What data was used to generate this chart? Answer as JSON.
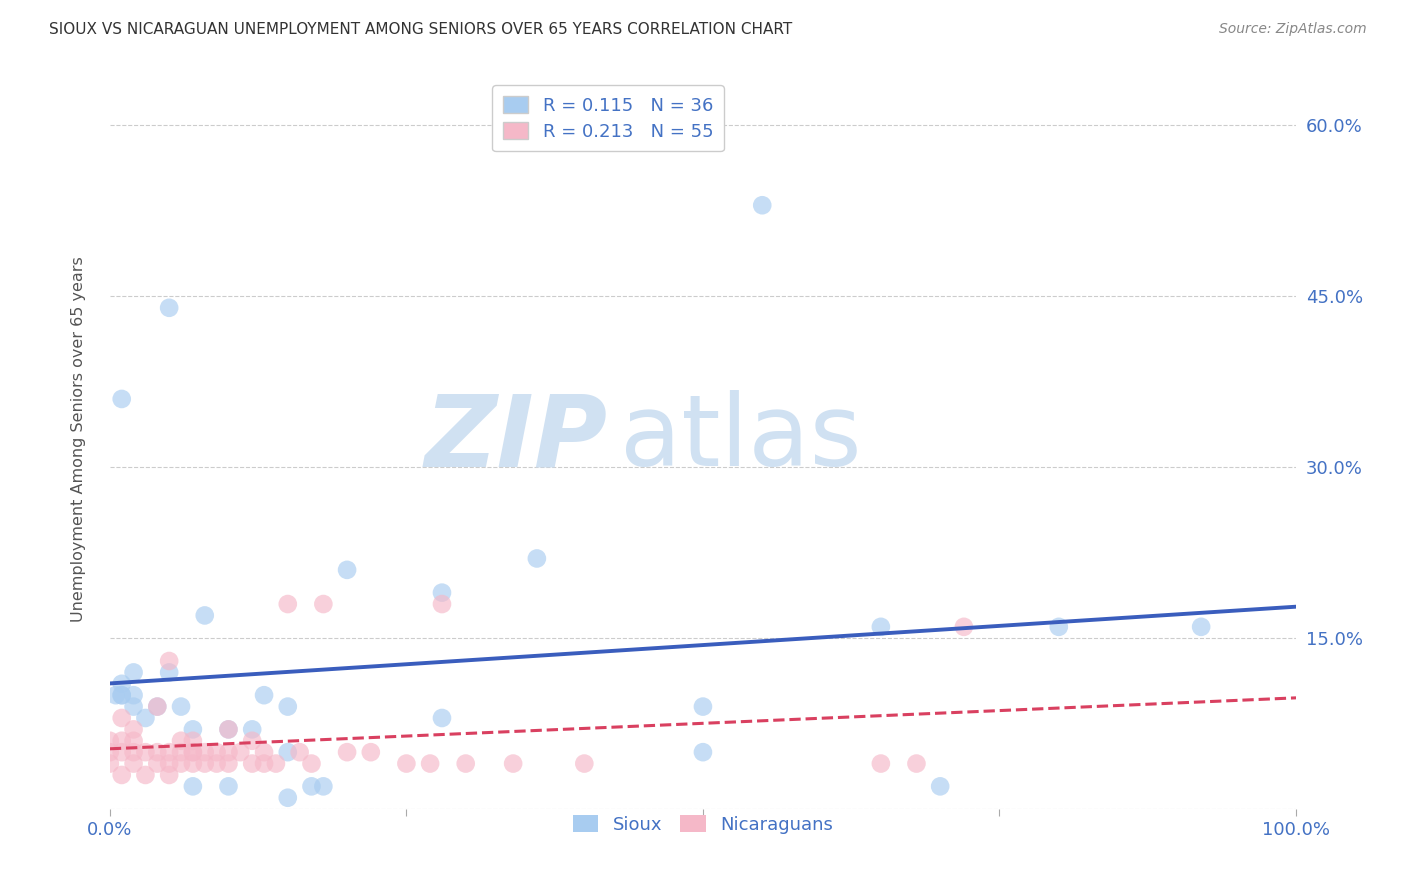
{
  "title": "SIOUX VS NICARAGUAN UNEMPLOYMENT AMONG SENIORS OVER 65 YEARS CORRELATION CHART",
  "source": "Source: ZipAtlas.com",
  "ylabel": "Unemployment Among Seniors over 65 years",
  "xlim": [
    0,
    1.0
  ],
  "ylim": [
    0,
    0.65
  ],
  "xticks": [
    0.0,
    0.25,
    0.5,
    0.75,
    1.0
  ],
  "xticklabels": [
    "0.0%",
    "",
    "",
    "",
    "100.0%"
  ],
  "yticks": [
    0.0,
    0.15,
    0.3,
    0.45,
    0.6
  ],
  "yticklabels_right": [
    "",
    "15.0%",
    "30.0%",
    "45.0%",
    "60.0%"
  ],
  "sioux_color": "#A8CCF0",
  "sioux_line_color": "#3A5DBD",
  "nicaraguan_color": "#F5B8C8",
  "nicaraguan_line_color": "#D94060",
  "sioux_R": 0.115,
  "sioux_N": 36,
  "nicaraguan_R": 0.213,
  "nicaraguan_N": 55,
  "watermark_zip": "ZIP",
  "watermark_atlas": "atlas",
  "background_color": "#ffffff",
  "grid_color": "#cccccc",
  "tick_color": "#4472C4",
  "label_color": "#4472C4",
  "sioux_x": [
    0.02,
    0.05,
    0.01,
    0.005,
    0.01,
    0.02,
    0.08,
    0.13,
    0.15,
    0.2,
    0.28,
    0.28,
    0.36,
    0.5,
    0.5,
    0.55,
    0.65,
    0.7,
    0.8,
    0.92,
    0.01,
    0.01,
    0.02,
    0.03,
    0.04,
    0.05,
    0.06,
    0.07,
    0.07,
    0.1,
    0.1,
    0.12,
    0.15,
    0.15,
    0.17,
    0.18
  ],
  "sioux_y": [
    0.12,
    0.44,
    0.36,
    0.1,
    0.1,
    0.09,
    0.17,
    0.1,
    0.09,
    0.21,
    0.19,
    0.08,
    0.22,
    0.09,
    0.05,
    0.53,
    0.16,
    0.02,
    0.16,
    0.16,
    0.11,
    0.1,
    0.1,
    0.08,
    0.09,
    0.12,
    0.09,
    0.07,
    0.02,
    0.07,
    0.02,
    0.07,
    0.05,
    0.01,
    0.02,
    0.02
  ],
  "nicaraguan_x": [
    0.0,
    0.0,
    0.0,
    0.01,
    0.01,
    0.01,
    0.01,
    0.02,
    0.02,
    0.02,
    0.02,
    0.03,
    0.03,
    0.04,
    0.04,
    0.04,
    0.05,
    0.05,
    0.05,
    0.05,
    0.06,
    0.06,
    0.06,
    0.07,
    0.07,
    0.07,
    0.07,
    0.08,
    0.08,
    0.09,
    0.09,
    0.1,
    0.1,
    0.1,
    0.11,
    0.12,
    0.12,
    0.13,
    0.13,
    0.14,
    0.15,
    0.16,
    0.17,
    0.18,
    0.2,
    0.22,
    0.25,
    0.27,
    0.28,
    0.3,
    0.34,
    0.4,
    0.65,
    0.68,
    0.72
  ],
  "nicaraguan_y": [
    0.04,
    0.05,
    0.06,
    0.03,
    0.05,
    0.06,
    0.08,
    0.04,
    0.05,
    0.06,
    0.07,
    0.03,
    0.05,
    0.04,
    0.05,
    0.09,
    0.03,
    0.04,
    0.05,
    0.13,
    0.04,
    0.05,
    0.06,
    0.04,
    0.05,
    0.05,
    0.06,
    0.04,
    0.05,
    0.04,
    0.05,
    0.04,
    0.05,
    0.07,
    0.05,
    0.04,
    0.06,
    0.04,
    0.05,
    0.04,
    0.18,
    0.05,
    0.04,
    0.18,
    0.05,
    0.05,
    0.04,
    0.04,
    0.18,
    0.04,
    0.04,
    0.04,
    0.04,
    0.04,
    0.16
  ]
}
